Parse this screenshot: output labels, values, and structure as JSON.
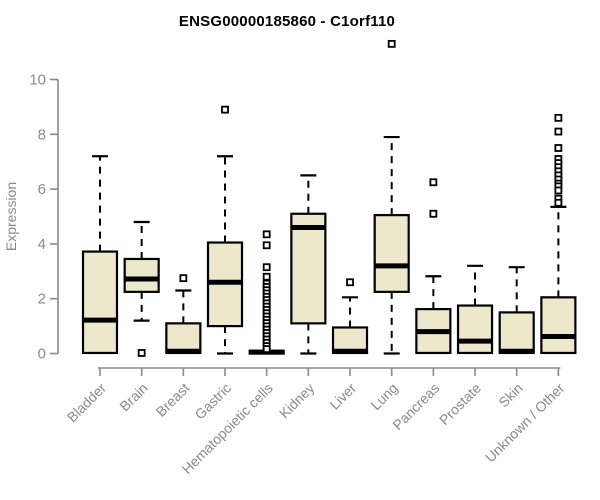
{
  "chart_data": {
    "type": "boxplot",
    "title": "ENSG00000185860 - C1orf110",
    "ylabel": "Expression",
    "xlabel": "",
    "ylim": [
      0,
      10
    ],
    "yticks": [
      0,
      2,
      4,
      6,
      8,
      10
    ],
    "grid": false,
    "legend": "none",
    "categories": [
      "Bladder",
      "Brain",
      "Breast",
      "Gastric",
      "Hematopoietic cells",
      "Kidney",
      "Liver",
      "Lung",
      "Pancreas",
      "Prostate",
      "Skin",
      "Unknown / Other"
    ],
    "series": [
      {
        "name": "Bladder",
        "whisker_low": 0,
        "q1": 0.02,
        "median": 1.22,
        "q3": 3.72,
        "whisker_high": 7.2,
        "outliers": []
      },
      {
        "name": "Brain",
        "whisker_low": 1.2,
        "q1": 2.25,
        "median": 2.72,
        "q3": 3.45,
        "whisker_high": 4.8,
        "outliers": [
          0.02
        ]
      },
      {
        "name": "Breast",
        "whisker_low": 0,
        "q1": 0.02,
        "median": 0.08,
        "q3": 1.1,
        "whisker_high": 2.3,
        "outliers": [
          2.75
        ]
      },
      {
        "name": "Gastric",
        "whisker_low": 0,
        "q1": 1.0,
        "median": 2.6,
        "q3": 4.05,
        "whisker_high": 7.2,
        "outliers": [
          8.9
        ]
      },
      {
        "name": "Hematopoietic cells",
        "whisker_low": 0,
        "q1": 0.0,
        "median": 0.05,
        "q3": 0.1,
        "whisker_high": 0.1,
        "outliers": [
          4.35,
          3.95,
          3.15,
          2.8,
          2.55,
          2.43,
          2.31,
          2.19,
          2.07,
          1.95,
          1.83,
          1.71,
          1.59,
          1.47,
          1.35,
          1.23,
          1.11,
          0.99,
          0.87,
          0.75,
          0.63,
          0.51,
          0.39,
          0.27,
          0.16
        ]
      },
      {
        "name": "Kidney",
        "whisker_low": 0,
        "q1": 1.1,
        "median": 4.6,
        "q3": 5.1,
        "whisker_high": 6.5,
        "outliers": []
      },
      {
        "name": "Liver",
        "whisker_low": 0,
        "q1": 0.02,
        "median": 0.08,
        "q3": 0.95,
        "whisker_high": 2.05,
        "outliers": [
          2.6
        ]
      },
      {
        "name": "Lung",
        "whisker_low": 0,
        "q1": 2.25,
        "median": 3.2,
        "q3": 5.05,
        "whisker_high": 7.9,
        "outliers": [
          11.3
        ]
      },
      {
        "name": "Pancreas",
        "whisker_low": 0,
        "q1": 0.02,
        "median": 0.8,
        "q3": 1.62,
        "whisker_high": 2.82,
        "outliers": [
          6.25,
          5.1
        ]
      },
      {
        "name": "Prostate",
        "whisker_low": 0,
        "q1": 0.02,
        "median": 0.45,
        "q3": 1.75,
        "whisker_high": 3.2,
        "outliers": []
      },
      {
        "name": "Skin",
        "whisker_low": 0,
        "q1": 0.02,
        "median": 0.08,
        "q3": 1.5,
        "whisker_high": 3.15,
        "outliers": []
      },
      {
        "name": "Unknown / Other",
        "whisker_low": 0,
        "q1": 0.02,
        "median": 0.62,
        "q3": 2.05,
        "whisker_high": 5.35,
        "outliers": [
          8.6,
          8.1,
          7.5,
          7.1,
          6.95,
          6.8,
          6.65,
          6.5,
          6.35,
          6.2,
          6.1,
          5.95,
          5.65,
          5.5
        ]
      }
    ]
  },
  "colors": {
    "box_fill": "#EDE7CC",
    "box_stroke": "#000000",
    "median": "#000000",
    "axis": "#8A8A8A",
    "axis_text": "#8A8A8A",
    "title_text": "#000000",
    "background": "#FFFFFF"
  }
}
